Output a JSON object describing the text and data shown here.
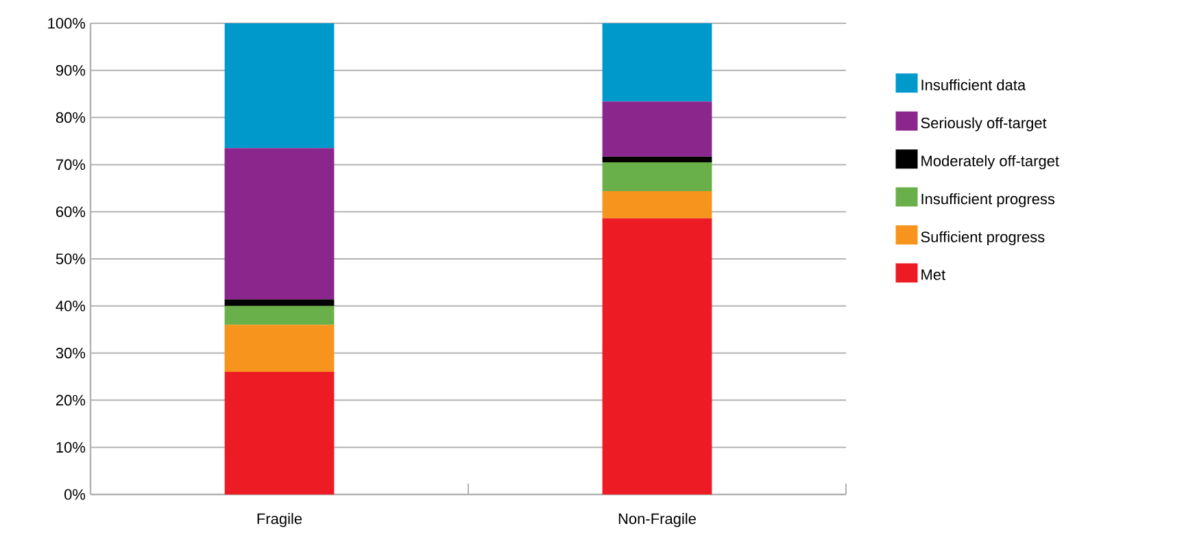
{
  "chart_data": {
    "type": "bar",
    "stacked": true,
    "categories": [
      "Fragile",
      "Non-Fragile"
    ],
    "series": [
      {
        "name": "Met",
        "color": "#ed1c24",
        "values": [
          26,
          58.6
        ]
      },
      {
        "name": "Sufficient progress",
        "color": "#f7941d",
        "values": [
          10,
          5.8
        ]
      },
      {
        "name": "Insufficient progress",
        "color": "#6ab04a",
        "values": [
          4,
          6.1
        ]
      },
      {
        "name": "Moderately off-target",
        "color": "#000000",
        "values": [
          1.4,
          1.2
        ]
      },
      {
        "name": "Seriously off-target",
        "color": "#8b278c",
        "values": [
          32.1,
          11.7
        ]
      },
      {
        "name": "Insufficient data",
        "color": "#0099cc",
        "values": [
          26.5,
          16.6
        ]
      }
    ],
    "ylim": [
      0,
      100
    ],
    "yticks": [
      {
        "value": 0,
        "label": "0%"
      },
      {
        "value": 10,
        "label": "10%"
      },
      {
        "value": 20,
        "label": "20%"
      },
      {
        "value": 30,
        "label": "30%"
      },
      {
        "value": 40,
        "label": "40%"
      },
      {
        "value": 50,
        "label": "50%"
      },
      {
        "value": 60,
        "label": "60%"
      },
      {
        "value": 70,
        "label": "70%"
      },
      {
        "value": 80,
        "label": "80%"
      },
      {
        "value": 90,
        "label": "90%"
      },
      {
        "value": 100,
        "label": "100%"
      }
    ],
    "grid": "y",
    "legend": "right"
  }
}
